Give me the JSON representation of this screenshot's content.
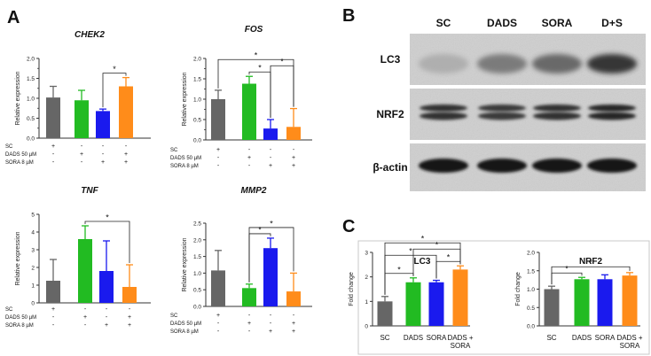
{
  "figure": {
    "panel_labels": {
      "A": "A",
      "B": "B",
      "C": "C"
    },
    "significance_mark": "*"
  },
  "colors": {
    "SC": "#666666",
    "DADS": "#22bb22",
    "SORA": "#1a1aee",
    "DS": "#ff8c1a",
    "axis": "#333333",
    "blot_bg": "#cfcfcf"
  },
  "treatment_table": {
    "row_labels": [
      "SC",
      "DADS 50 µM",
      "SORA 8 µM"
    ],
    "marks": [
      [
        "+",
        "-",
        "-",
        "-"
      ],
      [
        "-",
        "+",
        "-",
        "+"
      ],
      [
        "-",
        "-",
        "+",
        "+"
      ]
    ]
  },
  "western_blot": {
    "lanes": [
      "SC",
      "DADS",
      "SORA",
      "D+S"
    ],
    "rows": [
      {
        "label": "LC3",
        "band_intensity": [
          0.15,
          0.45,
          0.55,
          0.85
        ],
        "band_spread": "diffuse"
      },
      {
        "label": "NRF2",
        "band_intensity": [
          0.8,
          0.75,
          0.8,
          0.85
        ],
        "band_spread": "double"
      },
      {
        "label": "β-actin",
        "band_intensity": [
          0.95,
          0.95,
          0.95,
          0.95
        ],
        "band_spread": "sharp"
      }
    ]
  },
  "chart_data": [
    {
      "id": "chek2",
      "type": "bar",
      "title": "CHEK2",
      "ylabel": "Relative expression",
      "ylim": [
        0,
        2.0
      ],
      "yticks": [
        "0.0",
        "0.5",
        "1.0",
        "1.5",
        "2.0"
      ],
      "minor_ticks": [
        0.25,
        0.75,
        1.25,
        1.75
      ],
      "categories": [
        "SC",
        "DADS",
        "SORA",
        "D+S"
      ],
      "values": [
        1.02,
        0.95,
        0.68,
        1.3
      ],
      "errors": [
        0.28,
        0.25,
        0.05,
        0.22
      ],
      "brackets": [
        [
          2,
          3
        ]
      ]
    },
    {
      "id": "fos",
      "type": "bar",
      "title": "FOS",
      "ylabel": "Relative expression",
      "ylim": [
        0,
        2.0
      ],
      "yticks": [
        "0.0",
        "0.5",
        "1.0",
        "1.5",
        "2.0"
      ],
      "minor_ticks": [
        0.25,
        0.75,
        1.25,
        1.75
      ],
      "categories": [
        "SC",
        "DADS",
        "SORA",
        "D+S"
      ],
      "values": [
        1.0,
        1.38,
        0.28,
        0.32
      ],
      "errors": [
        0.22,
        0.18,
        0.22,
        0.45
      ],
      "brackets": [
        [
          0,
          3
        ],
        [
          1,
          2
        ],
        [
          2,
          3
        ]
      ]
    },
    {
      "id": "tnf",
      "type": "bar",
      "title": "TNF",
      "ylabel": "Relative expression",
      "ylim": [
        0,
        5
      ],
      "yticks": [
        "0",
        "1",
        "2",
        "3",
        "4",
        "5"
      ],
      "minor_ticks": [],
      "categories": [
        "SC",
        "DADS",
        "SORA",
        "D+S"
      ],
      "values": [
        1.25,
        3.6,
        1.8,
        0.9
      ],
      "errors": [
        1.2,
        0.75,
        1.7,
        1.25
      ],
      "brackets": [
        [
          1,
          3
        ]
      ]
    },
    {
      "id": "mmp2",
      "type": "bar",
      "title": "MMP2",
      "ylabel": "Relative expression",
      "ylim": [
        0,
        2.5
      ],
      "yticks": [
        "0.0",
        "0.5",
        "1.0",
        "1.5",
        "2.0",
        "2.5"
      ],
      "minor_ticks": [],
      "categories": [
        "SC",
        "DADS",
        "SORA",
        "D+S"
      ],
      "values": [
        1.08,
        0.55,
        1.75,
        0.45
      ],
      "errors": [
        0.6,
        0.12,
        0.3,
        0.55
      ],
      "brackets": [
        [
          1,
          2
        ],
        [
          1,
          3
        ]
      ]
    },
    {
      "id": "lc3",
      "type": "bar",
      "title": "LC3",
      "ylabel": "Fold change",
      "ylim": [
        0,
        3
      ],
      "yticks": [
        "0",
        "1",
        "2",
        "3"
      ],
      "minor_ticks": [],
      "categories": [
        "SC",
        "DADS",
        "SORA",
        "DADS + SORA"
      ],
      "values": [
        1.0,
        1.78,
        1.78,
        2.3
      ],
      "errors": [
        0.2,
        0.18,
        0.08,
        0.15
      ],
      "brackets": [
        [
          0,
          1
        ],
        [
          0,
          2
        ],
        [
          0,
          3
        ],
        [
          1,
          3
        ],
        [
          2,
          3
        ]
      ]
    },
    {
      "id": "nrf2",
      "type": "bar",
      "title": "NRF2",
      "ylabel": "Fold change",
      "ylim": [
        0,
        2.0
      ],
      "yticks": [
        "0.0",
        "0.5",
        "1.0",
        "1.5",
        "2.0"
      ],
      "minor_ticks": [],
      "categories": [
        "SC",
        "DADS",
        "SORA",
        "DADS + SORA"
      ],
      "values": [
        1.0,
        1.27,
        1.27,
        1.37
      ],
      "errors": [
        0.08,
        0.05,
        0.12,
        0.08
      ],
      "brackets": [
        [
          0,
          1
        ],
        [
          0,
          3
        ]
      ]
    }
  ]
}
